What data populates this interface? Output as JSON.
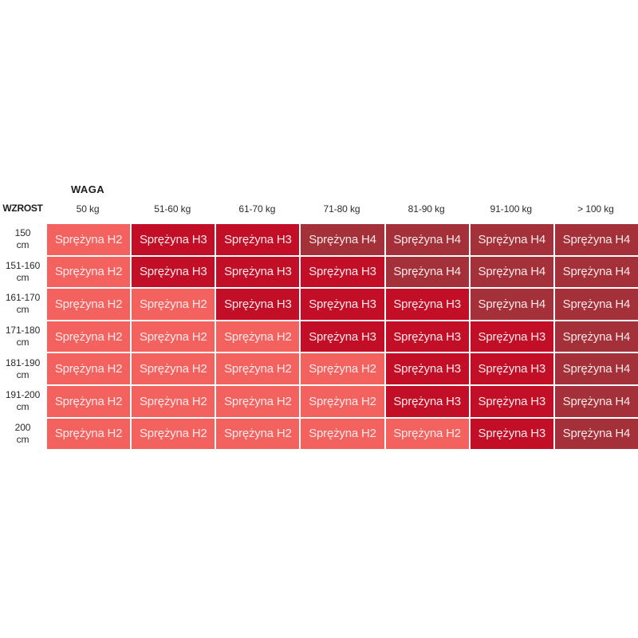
{
  "chart_data": {
    "type": "heatmap",
    "x_label": "WAGA",
    "y_label": "WZROST",
    "columns": [
      "50 kg",
      "51-60 kg",
      "61-70 kg",
      "71-80 kg",
      "81-90 kg",
      "91-100 kg",
      "> 100 kg"
    ],
    "rows": [
      {
        "value": "150",
        "unit": "cm"
      },
      {
        "value": "151-160",
        "unit": "cm"
      },
      {
        "value": "161-170",
        "unit": "cm"
      },
      {
        "value": "171-180",
        "unit": "cm"
      },
      {
        "value": "181-190",
        "unit": "cm"
      },
      {
        "value": "191-200",
        "unit": "cm"
      },
      {
        "value": "200",
        "unit": "cm"
      }
    ],
    "values": [
      [
        "H2",
        "H3",
        "H3",
        "H4",
        "H4",
        "H4",
        "H4"
      ],
      [
        "H2",
        "H3",
        "H3",
        "H3",
        "H4",
        "H4",
        "H4"
      ],
      [
        "H2",
        "H2",
        "H3",
        "H3",
        "H3",
        "H4",
        "H4"
      ],
      [
        "H2",
        "H2",
        "H2",
        "H3",
        "H3",
        "H3",
        "H4"
      ],
      [
        "H2",
        "H2",
        "H2",
        "H2",
        "H3",
        "H3",
        "H4"
      ],
      [
        "H2",
        "H2",
        "H2",
        "H2",
        "H3",
        "H3",
        "H4"
      ],
      [
        "H2",
        "H2",
        "H2",
        "H2",
        "H2",
        "H3",
        "H4"
      ]
    ],
    "cell_labels": [
      [
        "Sprężyna H2",
        "Sprężyna H3",
        "Sprężyna H3",
        "Sprężyna H4",
        "Sprężyna H4",
        "Sprężyna H4",
        "Sprężyna H4"
      ],
      [
        "Sprężyna H2",
        "Sprężyna H3",
        "Sprężyna H3",
        "Sprężyna H3",
        "Sprężyna H4",
        "Sprężyna H4",
        "Sprężyna H4"
      ],
      [
        "Sprężyna H2",
        "Sprężyna H2",
        "Sprężyna H3",
        "Sprężyna H3",
        "Sprężyna H3",
        "Sprężyna H4",
        "Sprężyna H4"
      ],
      [
        "Sprężyna H2",
        "Sprężyna H2",
        "Sprężyna H2",
        "Sprężyna H3",
        "Sprężyna H3",
        "Sprężyna H3",
        "Sprężyna H4"
      ],
      [
        "Sprężyna H2",
        "Sprężyna H2",
        "Sprężyna H2",
        "Sprężyna H2",
        "Sprężyna H3",
        "Sprężyna H3",
        "Sprężyna H4"
      ],
      [
        "Sprężyna H2",
        "Sprężyna H2",
        "Sprężyna H2",
        "Sprężyna H2",
        "Sprężyna H3",
        "Sprężyna H3",
        "Sprężyna H4"
      ],
      [
        "Sprężyna H2",
        "Sprężyna H2",
        "Sprężyna H2",
        "Sprężyna H2",
        "Sprężyna H2",
        "Sprężyna H3",
        "Sprężyna H4"
      ]
    ],
    "colors": {
      "H2": "#f3625f",
      "H3": "#c20e26",
      "H4": "#a43039",
      "cell_text": "#f8eaea",
      "header_text": "#1d1d1d",
      "label_text": "#2a2a2a"
    },
    "layout": {
      "grid": "off",
      "legend": "none",
      "cell_borders": "white 2px gaps"
    }
  }
}
